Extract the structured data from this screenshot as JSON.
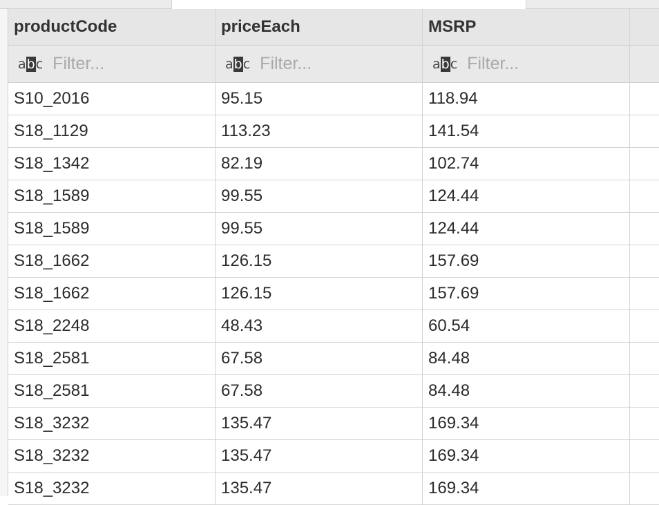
{
  "table": {
    "columns": [
      "productCode",
      "priceEach",
      "MSRP"
    ],
    "filter_placeholder": "Filter...",
    "filter_icon": {
      "a": "a",
      "b": "b",
      "c": "c"
    },
    "rows": [
      [
        "S10_2016",
        "95.15",
        "118.94"
      ],
      [
        "S18_1129",
        "113.23",
        "141.54"
      ],
      [
        "S18_1342",
        "82.19",
        "102.74"
      ],
      [
        "S18_1589",
        "99.55",
        "124.44"
      ],
      [
        "S18_1589",
        "99.55",
        "124.44"
      ],
      [
        "S18_1662",
        "126.15",
        "157.69"
      ],
      [
        "S18_1662",
        "126.15",
        "157.69"
      ],
      [
        "S18_2248",
        "48.43",
        "60.54"
      ],
      [
        "S18_2581",
        "67.58",
        "84.48"
      ],
      [
        "S18_2581",
        "67.58",
        "84.48"
      ],
      [
        "S18_3232",
        "135.47",
        "169.34"
      ],
      [
        "S18_3232",
        "135.47",
        "169.34"
      ],
      [
        "S18_3232",
        "135.47",
        "169.34"
      ]
    ]
  }
}
